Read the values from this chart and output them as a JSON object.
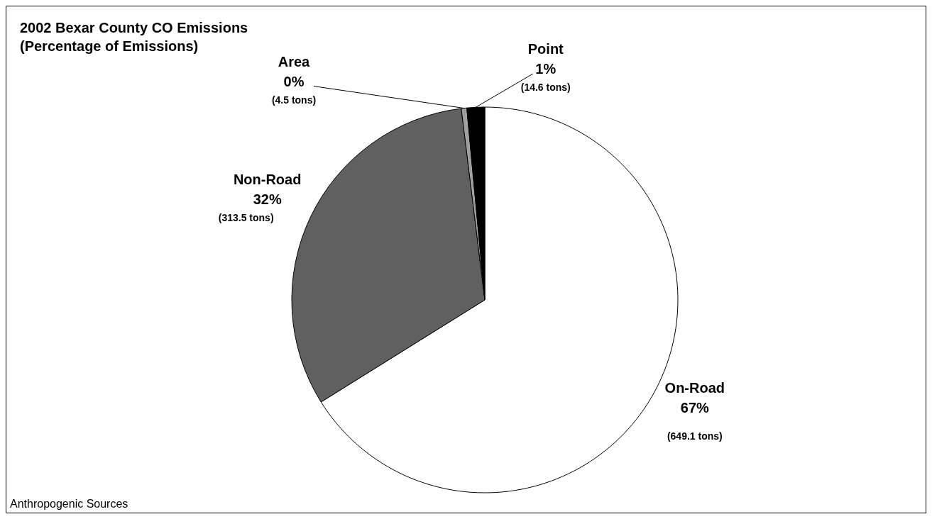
{
  "chart_data": {
    "type": "pie",
    "title": "2002 Bexar County CO Emissions",
    "subtitle": "(Percentage of Emissions)",
    "categories": [
      "On-Road",
      "Non-Road",
      "Area",
      "Point"
    ],
    "values": [
      649.1,
      313.5,
      4.5,
      14.6
    ],
    "colors": [
      "#ffffff",
      "#606060",
      "#a0a0a0",
      "#000000"
    ],
    "value_labels": [
      "67%\n(649.1 tons)",
      "32%\n(313.5 tons)",
      "0%\n(4.5 tons)",
      "1%\n(14.6 tons)"
    ],
    "annotations": [
      "Anthropogenic Sources"
    ]
  }
}
